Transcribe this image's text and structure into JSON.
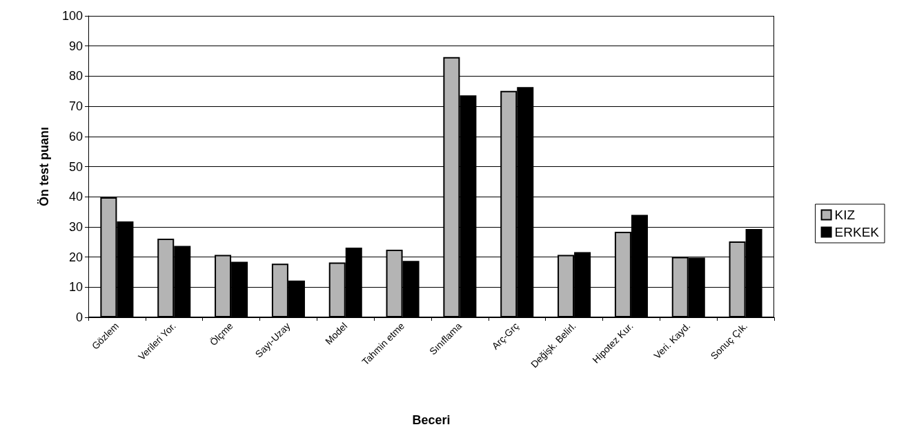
{
  "chart_data": {
    "type": "bar",
    "xlabel": "Beceri",
    "ylabel": "Ön test puanı",
    "categories": [
      "Gözlem",
      "Verileri Yor.",
      "Ölçme",
      "Sayı-Uzay",
      "Model",
      "Tahmin etme",
      "Sınıflama",
      "Arç-Grç",
      "Değişk. Belirl.",
      "Hipotez Kur.",
      "Veri. Kayd.",
      "Sonuç Çık."
    ],
    "series": [
      {
        "name": "KIZ",
        "color": "#b4b4b4",
        "values": [
          39.8,
          26.1,
          20.7,
          17.8,
          18.2,
          22.4,
          86.3,
          75.1,
          20.7,
          28.4,
          20.0,
          25.2
        ]
      },
      {
        "name": "ERKEK",
        "color": "#000000",
        "values": [
          31.8,
          23.7,
          18.4,
          12.2,
          23.1,
          18.7,
          73.6,
          76.4,
          21.6,
          34.0,
          19.8,
          29.3
        ]
      }
    ],
    "ylim": [
      0,
      100
    ],
    "yticks": [
      0,
      10,
      20,
      30,
      40,
      50,
      60,
      70,
      80,
      90,
      100
    ],
    "grid": "y",
    "legend": "right"
  }
}
